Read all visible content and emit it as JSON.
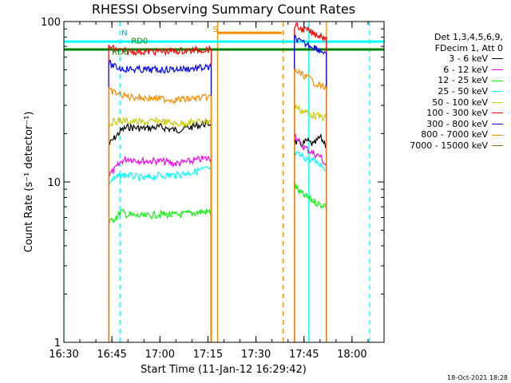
{
  "chart_data": {
    "type": "line",
    "title": "RHESSI Observing Summary Count Rates",
    "xlabel": "Start Time (11-Jan-12 16:29:42)",
    "ylabel": "Count Rate (s⁻¹ detector⁻¹)",
    "yscale": "log",
    "ylim": [
      1,
      100
    ],
    "xlim": [
      "16:30",
      "18:10"
    ],
    "x_ticks": [
      "16:30",
      "16:45",
      "17:00",
      "17:15",
      "17:30",
      "17:45",
      "18:00"
    ],
    "y_ticks": [
      "1",
      "10",
      "100"
    ],
    "legend_header": [
      "Det 1,3,4,5,6,9,",
      "FDecim 1, Att 0"
    ],
    "legend_placement": "right",
    "series": [
      {
        "name": "3 - 6 keV",
        "color": "#000000",
        "segments": [
          {
            "x": [
              "16:44",
              "16:46",
              "16:48",
              "16:50",
              "16:55",
              "17:00",
              "17:05",
              "17:10",
              "17:14",
              "17:16"
            ],
            "y": [
              17,
              19,
              21,
              22,
              21.5,
              22,
              21,
              22,
              23,
              23
            ]
          },
          {
            "x": [
              "17:42",
              "17:44",
              "17:46",
              "17:48",
              "17:50",
              "17:52"
            ],
            "y": [
              18,
              17,
              18,
              17,
              19,
              17
            ]
          }
        ]
      },
      {
        "name": "6 - 12 keV",
        "color": "#ff00ff",
        "segments": [
          {
            "x": [
              "16:44",
              "16:46",
              "16:48",
              "16:50",
              "16:55",
              "17:00",
              "17:05",
              "17:10",
              "17:14",
              "17:16"
            ],
            "y": [
              11,
              12,
              13.5,
              14,
              13.5,
              13.5,
              13,
              13.5,
              14,
              14
            ]
          },
          {
            "x": [
              "17:42",
              "17:44",
              "17:46",
              "17:48",
              "17:50",
              "17:52"
            ],
            "y": [
              20,
              17,
              16,
              15,
              14.5,
              12.5
            ]
          }
        ]
      },
      {
        "name": "12 - 25 keV",
        "color": "#00ff00",
        "segments": [
          {
            "x": [
              "16:44",
              "16:46",
              "16:48",
              "16:50",
              "16:55",
              "17:00",
              "17:05",
              "17:10",
              "17:14",
              "17:16"
            ],
            "y": [
              5.5,
              6,
              6.5,
              6.2,
              6.1,
              6.3,
              6.2,
              6.4,
              6.5,
              6.5
            ]
          },
          {
            "x": [
              "17:42",
              "17:44",
              "17:46",
              "17:48",
              "17:50",
              "17:52"
            ],
            "y": [
              9.5,
              8.5,
              8,
              7.6,
              7.2,
              7.2
            ]
          }
        ]
      },
      {
        "name": "25 - 50 keV",
        "color": "#00ffff",
        "segments": [
          {
            "x": [
              "16:44",
              "16:46",
              "16:48",
              "16:50",
              "16:55",
              "17:00",
              "17:05",
              "17:10",
              "17:14",
              "17:16"
            ],
            "y": [
              10,
              10.5,
              11,
              11,
              10.5,
              11,
              11,
              11.5,
              12,
              12
            ]
          },
          {
            "x": [
              "17:42",
              "17:44",
              "17:46",
              "17:48",
              "17:50",
              "17:52"
            ],
            "y": [
              15,
              14.5,
              14,
              13.5,
              13,
              12
            ]
          }
        ]
      },
      {
        "name": "50 - 100 keV",
        "color": "#cccc00",
        "segments": [
          {
            "x": [
              "16:44",
              "16:46",
              "16:48",
              "16:50",
              "16:55",
              "17:00",
              "17:05",
              "17:10",
              "17:14",
              "17:16"
            ],
            "y": [
              23,
              24,
              24,
              24,
              23.5,
              24,
              23,
              23.5,
              24,
              24
            ]
          },
          {
            "x": [
              "17:42",
              "17:44",
              "17:46",
              "17:48",
              "17:50",
              "17:52"
            ],
            "y": [
              30,
              28,
              27,
              26,
              25.5,
              25
            ]
          }
        ]
      },
      {
        "name": "100 - 300 keV",
        "color": "#ff0000",
        "segments": [
          {
            "x": [
              "16:44",
              "16:46",
              "16:48",
              "16:50",
              "16:55",
              "17:00",
              "17:05",
              "17:10",
              "17:14",
              "17:16"
            ],
            "y": [
              70,
              67,
              66,
              65,
              65,
              65,
              65.5,
              66,
              67,
              67
            ]
          },
          {
            "x": [
              "17:42",
              "17:44",
              "17:46",
              "17:48",
              "17:50",
              "17:52"
            ],
            "y": [
              95,
              90,
              88,
              84,
              82,
              80
            ]
          }
        ]
      },
      {
        "name": "300 - 800 keV",
        "color": "#0000ff",
        "segments": [
          {
            "x": [
              "16:44",
              "16:46",
              "16:48",
              "16:50",
              "16:55",
              "17:00",
              "17:05",
              "17:10",
              "17:14",
              "17:16"
            ],
            "y": [
              55,
              52,
              51,
              50.5,
              50,
              50,
              50.5,
              51,
              51.5,
              51.5
            ]
          },
          {
            "x": [
              "17:42",
              "17:44",
              "17:46",
              "17:48",
              "17:50",
              "17:52"
            ],
            "y": [
              80,
              74,
              72,
              70,
              66,
              64
            ]
          }
        ]
      },
      {
        "name": "800 - 7000 keV",
        "color": "#ff8c00",
        "segments": [
          {
            "x": [
              "16:44",
              "16:46",
              "16:48",
              "16:50",
              "16:55",
              "17:00",
              "17:05",
              "17:10",
              "17:14",
              "17:16"
            ],
            "y": [
              37,
              36,
              35,
              34,
              33.5,
              33,
              32.5,
              33,
              33.5,
              34
            ]
          },
          {
            "x": [
              "17:42",
              "17:44",
              "17:46",
              "17:48",
              "17:50",
              "17:52"
            ],
            "y": [
              50,
              47,
              45,
              42,
              40,
              38
            ]
          }
        ]
      },
      {
        "name": "7000 - 15000 keV",
        "color": "#997700",
        "segments": []
      }
    ],
    "reference_lines": [
      {
        "y": 75,
        "x_range": [
          "16:30",
          "18:10"
        ],
        "color": "#00ffff"
      },
      {
        "y": 67,
        "x_range": [
          "16:30",
          "18:10"
        ],
        "color": "#008000"
      }
    ],
    "vertical_lines": [
      {
        "x": "16:30",
        "color": "#00ffff",
        "style": "solid"
      },
      {
        "x": "16:47:30",
        "color": "#00ffff",
        "style": "dashed"
      },
      {
        "x": "17:18:00",
        "color": "#ff8c00",
        "style": "solid"
      },
      {
        "x": "17:38:30",
        "color": "#ff8c00",
        "style": "dashed"
      },
      {
        "x": "17:46:30",
        "color": "#00ffff",
        "style": "solid"
      },
      {
        "x": "17:52:00",
        "color": "#ff8c00",
        "style": "solid"
      },
      {
        "x": "18:05:30",
        "color": "#00ffff",
        "style": "dashed"
      }
    ],
    "saa_bar": {
      "x_range": [
        "17:18",
        "17:38"
      ],
      "y": 85,
      "color": "#ff8c00"
    },
    "annotations": [
      {
        "text": "N",
        "x": "16:47:30",
        "y": 82,
        "color": "#00aaaa"
      },
      {
        "text": "RD0",
        "x": "16:50:30",
        "y": 73,
        "color": "#008000"
      },
      {
        "text": "RD6",
        "x": "16:44:30",
        "y": 62,
        "color": "#008000"
      },
      {
        "text": "S",
        "x": "17:16:00",
        "y": 86,
        "color": "#ff8c00"
      }
    ]
  },
  "footer": {
    "date": "18-Oct-2021 18:28"
  }
}
